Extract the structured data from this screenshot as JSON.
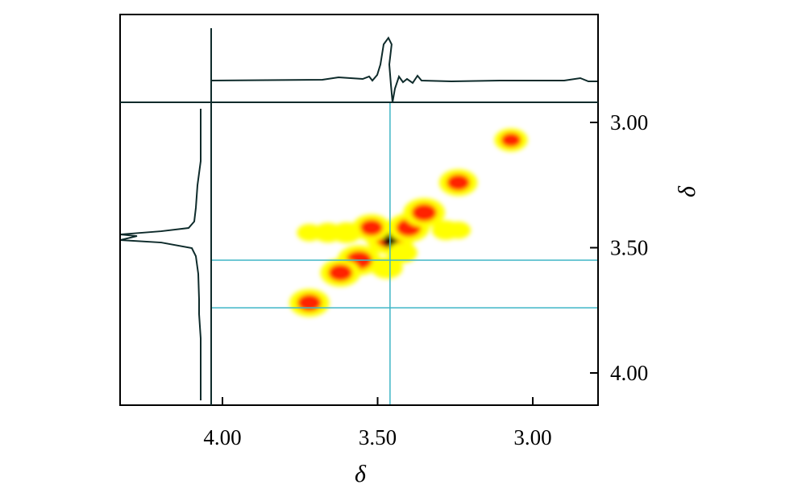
{
  "chart_data": {
    "type": "heatmap",
    "subtype": "2D NMR contour plot with 1D projections",
    "title": "",
    "xlabel": "δ",
    "ylabel": "δ",
    "x_axis": {
      "range": [
        4.3,
        2.75
      ],
      "reversed": true,
      "ticks": [
        4.0,
        3.5,
        3.0
      ],
      "tick_labels": [
        "4.00",
        "3.50",
        "3.00"
      ]
    },
    "y_axis": {
      "range": [
        2.95,
        4.15
      ],
      "reversed": true,
      "position": "right",
      "ticks": [
        3.0,
        3.5,
        4.0
      ],
      "tick_labels": [
        "3.00",
        "3.50",
        "4.00"
      ]
    },
    "cursor_lines": {
      "vertical_x": 3.46,
      "horizontal_y": [
        3.55,
        3.74
      ],
      "color": "#3fb6c6"
    },
    "peaks": [
      {
        "x": 3.46,
        "y": 3.46,
        "intensity": 1.0
      },
      {
        "x": 3.4,
        "y": 3.42,
        "intensity": 0.8
      },
      {
        "x": 3.52,
        "y": 3.42,
        "intensity": 0.7
      },
      {
        "x": 3.56,
        "y": 3.55,
        "intensity": 0.85
      },
      {
        "x": 3.62,
        "y": 3.6,
        "intensity": 0.75
      },
      {
        "x": 3.35,
        "y": 3.36,
        "intensity": 0.8
      },
      {
        "x": 3.24,
        "y": 3.24,
        "intensity": 0.7
      },
      {
        "x": 3.72,
        "y": 3.72,
        "intensity": 0.75
      },
      {
        "x": 3.07,
        "y": 3.07,
        "intensity": 0.55
      },
      {
        "x": 3.6,
        "y": 3.44,
        "intensity": 0.45
      },
      {
        "x": 3.66,
        "y": 3.44,
        "intensity": 0.4
      },
      {
        "x": 3.28,
        "y": 3.43,
        "intensity": 0.4
      },
      {
        "x": 3.47,
        "y": 3.58,
        "intensity": 0.5
      },
      {
        "x": 3.72,
        "y": 3.44,
        "intensity": 0.3
      },
      {
        "x": 3.24,
        "y": 3.43,
        "intensity": 0.3
      },
      {
        "x": 3.42,
        "y": 3.52,
        "intensity": 0.45
      }
    ],
    "projections": [
      {
        "axis": "top",
        "peak_at": 3.46
      },
      {
        "axis": "left",
        "peak_at": 3.46
      }
    ],
    "colors": {
      "low": "#ffff00",
      "mid": "#ff2000",
      "high": "#000000",
      "frame": "#0e2b2b",
      "cursor": "#3fb6c6"
    },
    "grid": false,
    "legend": "none"
  }
}
